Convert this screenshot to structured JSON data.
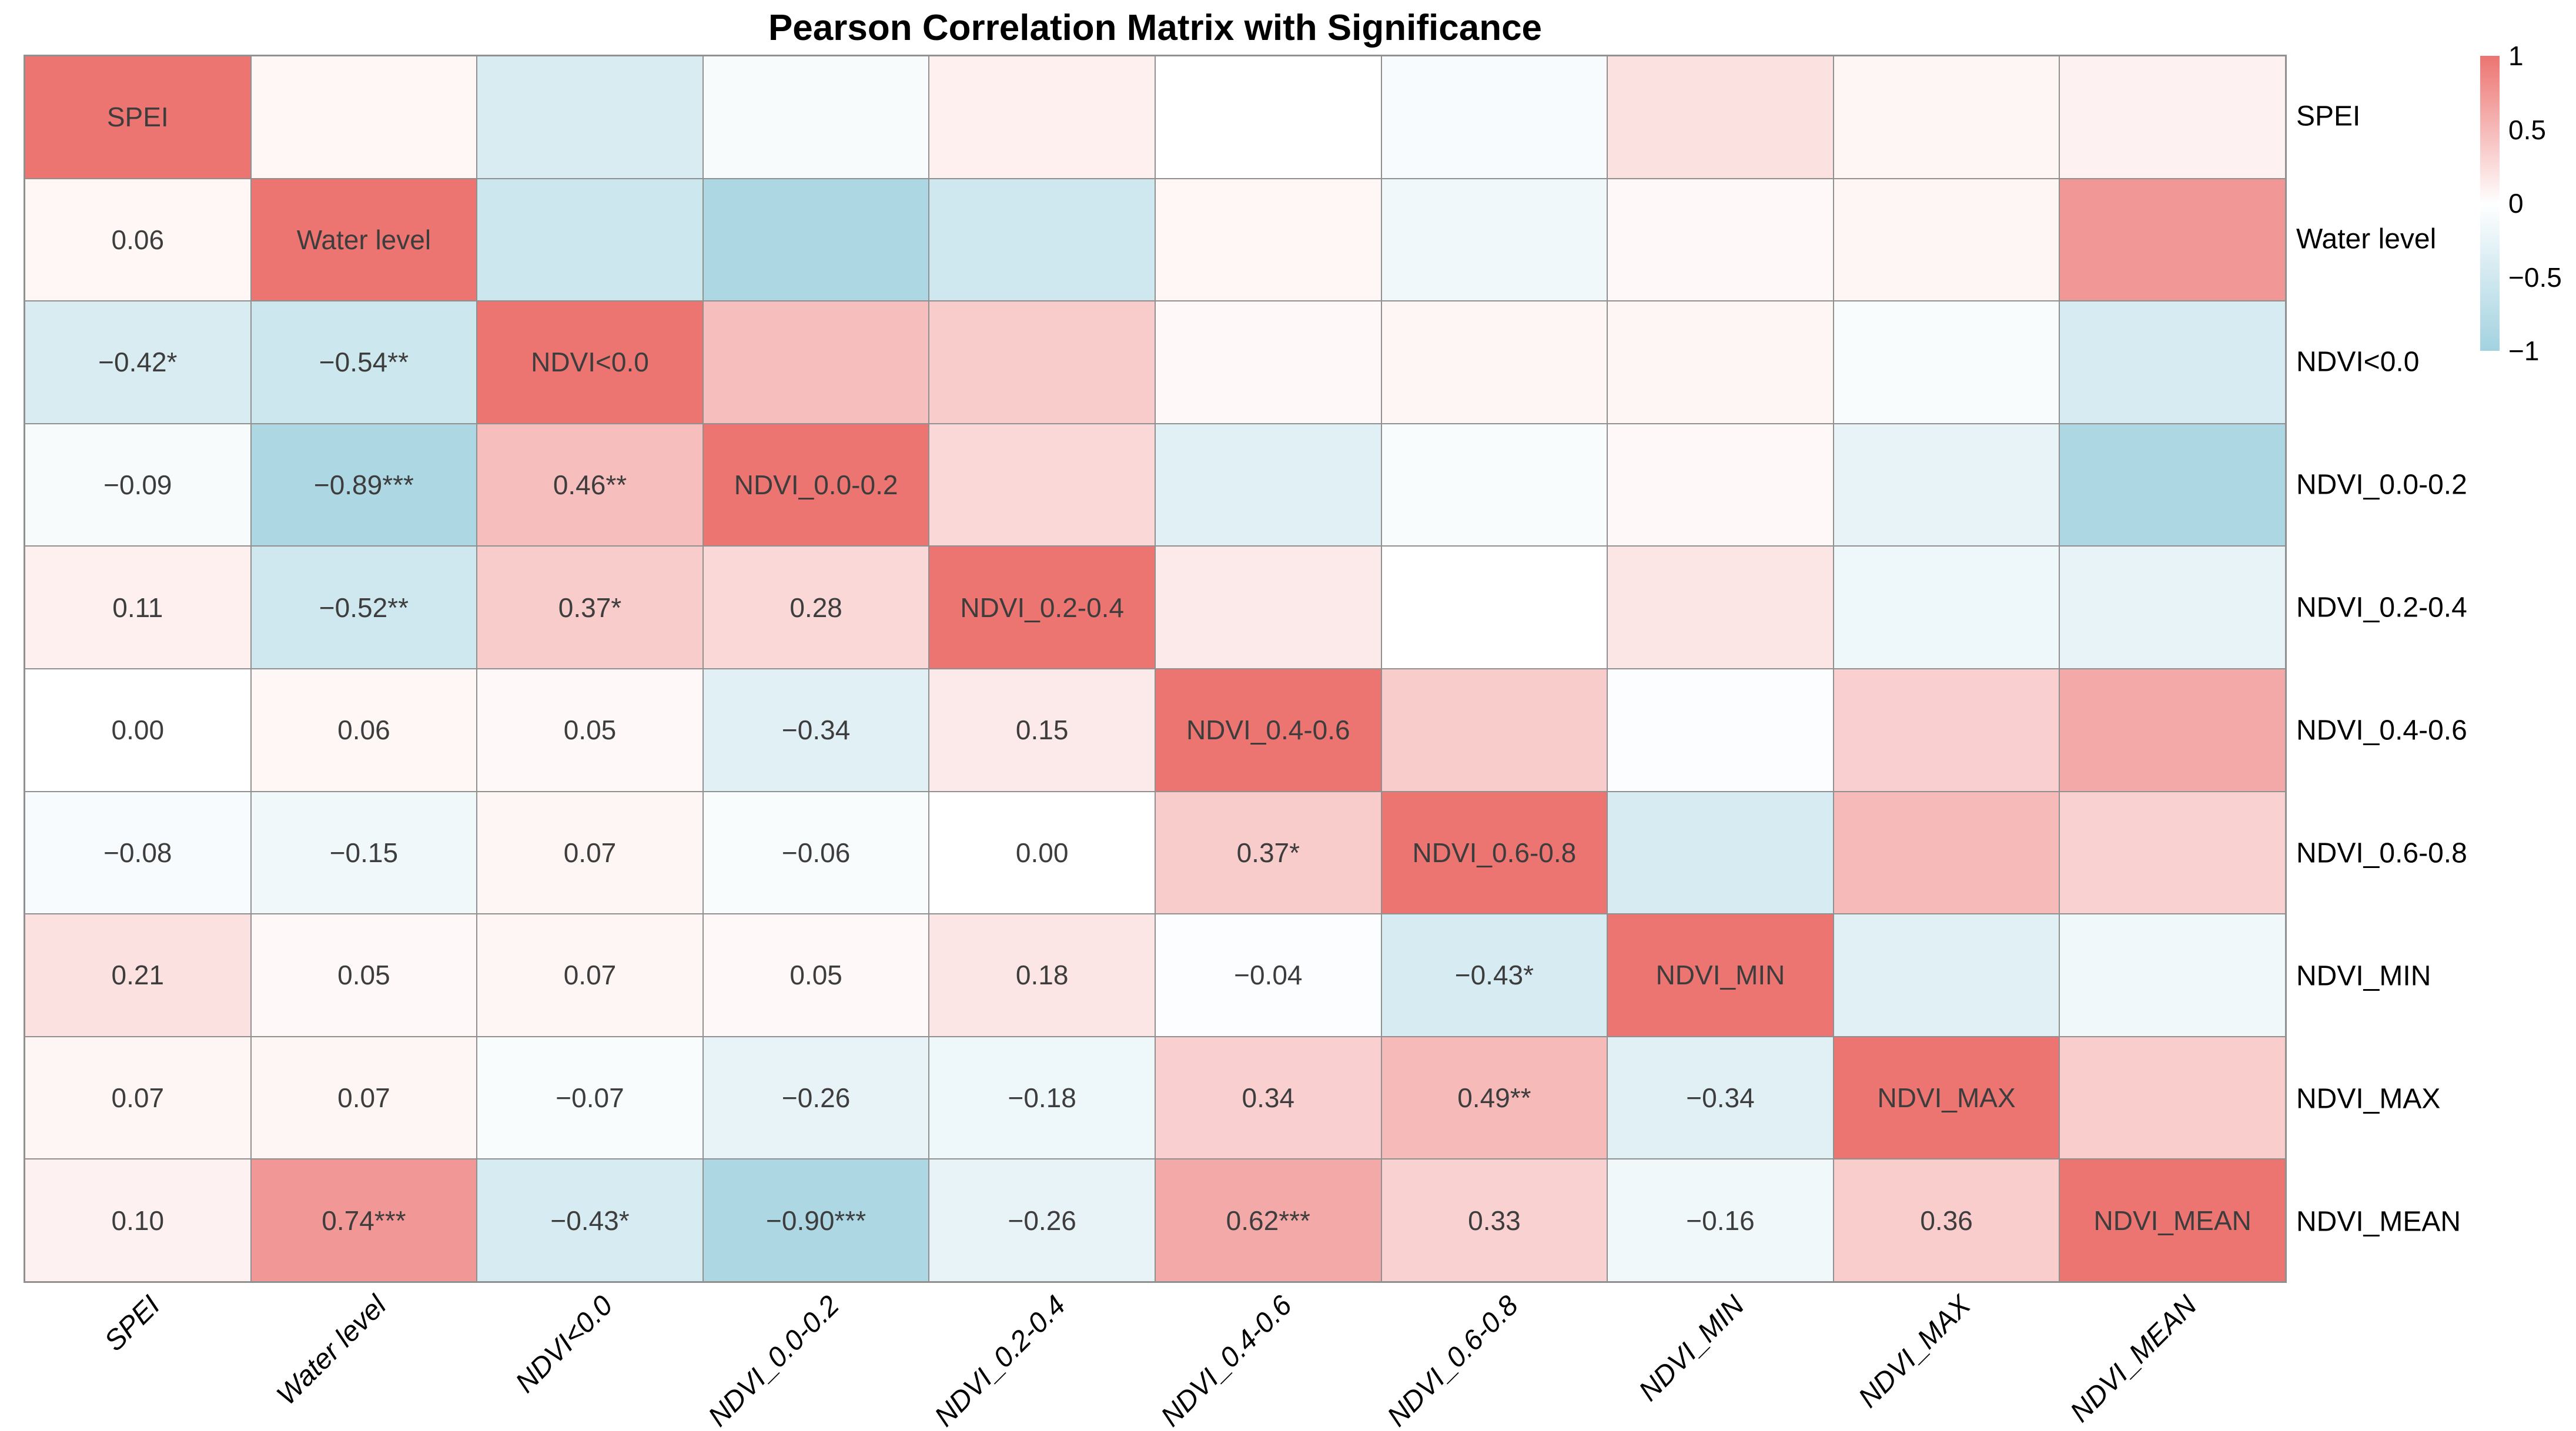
{
  "chart_data": {
    "type": "heatmap",
    "title": "Pearson Correlation Matrix with Significance",
    "categories": [
      "SPEI",
      "Water level",
      "NDVI<0.0",
      "NDVI_0.0-0.2",
      "NDVI_0.2-0.4",
      "NDVI_0.4-0.6",
      "NDVI_0.6-0.8",
      "NDVI_MIN",
      "NDVI_MAX",
      "NDVI_MEAN"
    ],
    "diagonal_value": 1,
    "lower_labels": [
      [
        "0.06"
      ],
      [
        "−0.42*",
        "−0.54**"
      ],
      [
        "−0.09",
        "−0.89***",
        "0.46**"
      ],
      [
        "0.11",
        "−0.52**",
        "0.37*",
        "0.28"
      ],
      [
        "0.00",
        "0.06",
        "0.05",
        "−0.34",
        "0.15"
      ],
      [
        "−0.08",
        "−0.15",
        "0.07",
        "−0.06",
        "0.00",
        "0.37*"
      ],
      [
        "0.21",
        "0.05",
        "0.07",
        "0.05",
        "0.18",
        "−0.04",
        "−0.43*"
      ],
      [
        "0.07",
        "0.07",
        "−0.07",
        "−0.26",
        "−0.18",
        "0.34",
        "0.49**",
        "−0.34"
      ],
      [
        "0.10",
        "0.74***",
        "−0.43*",
        "−0.90***",
        "−0.26",
        "0.62***",
        "0.33",
        "−0.16",
        "0.36"
      ]
    ],
    "lower_values": [
      [
        0.06
      ],
      [
        -0.42,
        -0.54
      ],
      [
        -0.09,
        -0.89,
        0.46
      ],
      [
        0.11,
        -0.52,
        0.37,
        0.28
      ],
      [
        0.0,
        0.06,
        0.05,
        -0.34,
        0.15
      ],
      [
        -0.08,
        -0.15,
        0.07,
        -0.06,
        0.0,
        0.37
      ],
      [
        0.21,
        0.05,
        0.07,
        0.05,
        0.18,
        -0.04,
        -0.43
      ],
      [
        0.07,
        0.07,
        -0.07,
        -0.26,
        -0.18,
        0.34,
        0.49,
        -0.34
      ],
      [
        0.1,
        0.74,
        -0.43,
        -0.9,
        -0.26,
        0.62,
        0.33,
        -0.16,
        0.36
      ]
    ],
    "colorbar": {
      "ticks": [
        "1",
        "0.5",
        "0",
        "−0.5",
        "−1"
      ],
      "max": 1,
      "min": -1
    },
    "layout_hints": {
      "upper_triangle": "color only, mirrored from lower triangle",
      "diagonal": "variable name on max-positive color",
      "legend_position": "right"
    },
    "colors": {
      "positive_max": "#ec7471",
      "zero": "#ffffff",
      "negative_max": "#a3d2e0",
      "grid": "#909090",
      "value_text": "#3d3d3d",
      "axis_text": "#000000"
    }
  }
}
